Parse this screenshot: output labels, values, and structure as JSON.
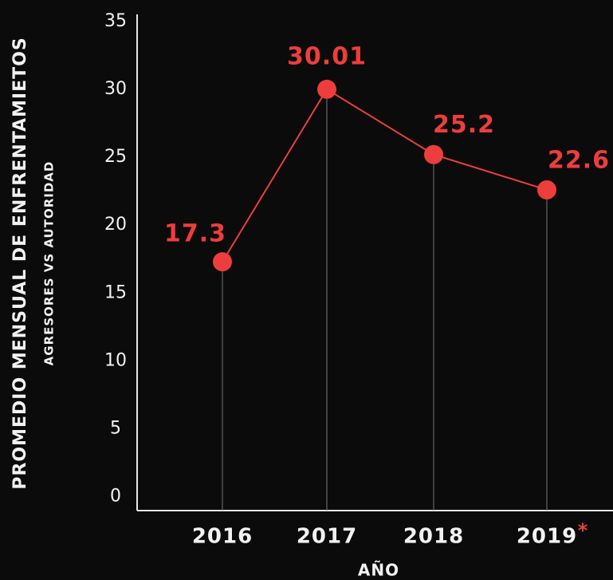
{
  "chart_data": {
    "type": "line",
    "y_label": "PROMEDIO MENSUAL DE ENFRENTAMIETOS",
    "y_sublabel": "AGRESORES VS AUTORIDAD",
    "x_label": "AÑO",
    "categories": [
      "2016",
      "2017",
      "2018",
      "2019"
    ],
    "footnote_marker": "*",
    "series": [
      {
        "name": null,
        "color": "#ee3d3d",
        "values": [
          17.3,
          30.01,
          25.2,
          22.6
        ]
      }
    ],
    "ylim": [
      -1,
      35.5
    ],
    "yticks": [
      0,
      5,
      10,
      15,
      20,
      25,
      30,
      35
    ],
    "grid": false
  }
}
